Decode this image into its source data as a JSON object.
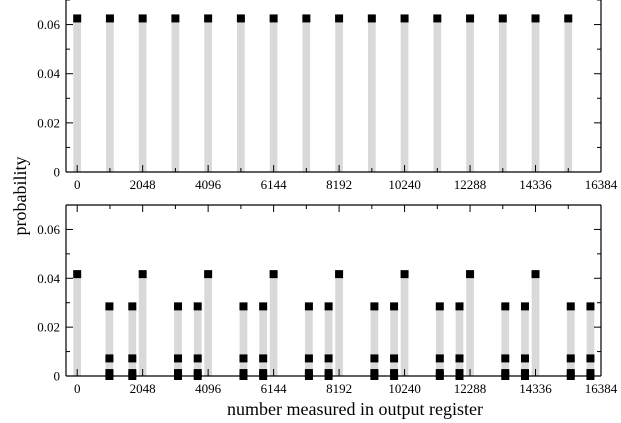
{
  "chart_data": [
    {
      "type": "bar",
      "panel": "top",
      "xlim": [
        -350,
        16384
      ],
      "ylim": [
        0,
        0.07
      ],
      "x_ticks": [
        0,
        2048,
        4096,
        6144,
        8192,
        10240,
        12288,
        14336,
        16384
      ],
      "y_ticks": [
        0,
        0.02,
        0.04,
        0.06
      ],
      "y_tick_labels": [
        "0",
        "0.02",
        "0.04",
        "0.06"
      ],
      "bar_width": 240,
      "series": [
        {
          "values": [
            {
              "x": 0,
              "y": 0.0625
            },
            {
              "x": 1024,
              "y": 0.0625
            },
            {
              "x": 2048,
              "y": 0.0625
            },
            {
              "x": 3072,
              "y": 0.0625
            },
            {
              "x": 4096,
              "y": 0.0625
            },
            {
              "x": 5120,
              "y": 0.0625
            },
            {
              "x": 6144,
              "y": 0.0625
            },
            {
              "x": 7168,
              "y": 0.0625
            },
            {
              "x": 8192,
              "y": 0.0625
            },
            {
              "x": 9216,
              "y": 0.0625
            },
            {
              "x": 10240,
              "y": 0.0625
            },
            {
              "x": 11264,
              "y": 0.0625
            },
            {
              "x": 12288,
              "y": 0.0625
            },
            {
              "x": 13312,
              "y": 0.0625
            },
            {
              "x": 14336,
              "y": 0.0625
            },
            {
              "x": 15360,
              "y": 0.0625
            }
          ]
        }
      ],
      "colors": {
        "bar": "#d9d9d9",
        "marker": "#000000"
      }
    },
    {
      "type": "bar",
      "panel": "bottom",
      "xlim": [
        -350,
        16384
      ],
      "ylim": [
        0,
        0.07
      ],
      "x_ticks": [
        0,
        2048,
        4096,
        6144,
        8192,
        10240,
        12288,
        14336,
        16384
      ],
      "y_ticks": [
        0,
        0.02,
        0.04,
        0.06
      ],
      "y_tick_labels": [
        "0",
        "0.02",
        "0.04",
        "0.06"
      ],
      "bar_width": 240,
      "series": [
        {
          "values": [
            {
              "x": 0,
              "y": 0.0417
            },
            {
              "x": 1008,
              "y": 0.0285
            },
            {
              "x": 1724,
              "y": 0.0285
            },
            {
              "x": 2048,
              "y": 0.0417
            },
            {
              "x": 3154,
              "y": 0.0285
            },
            {
              "x": 3770,
              "y": 0.0285
            },
            {
              "x": 4096,
              "y": 0.0417
            },
            {
              "x": 5201,
              "y": 0.0285
            },
            {
              "x": 5817,
              "y": 0.0285
            },
            {
              "x": 6144,
              "y": 0.0417
            },
            {
              "x": 7248,
              "y": 0.0285
            },
            {
              "x": 7864,
              "y": 0.0285
            },
            {
              "x": 8192,
              "y": 0.0417
            },
            {
              "x": 9296,
              "y": 0.0285
            },
            {
              "x": 9912,
              "y": 0.0285
            },
            {
              "x": 10240,
              "y": 0.0417
            },
            {
              "x": 11342,
              "y": 0.0285
            },
            {
              "x": 11958,
              "y": 0.0285
            },
            {
              "x": 12288,
              "y": 0.0417
            },
            {
              "x": 13390,
              "y": 0.0285
            },
            {
              "x": 14006,
              "y": 0.0285
            },
            {
              "x": 14336,
              "y": 0.0417
            },
            {
              "x": 15438,
              "y": 0.0285
            },
            {
              "x": 16054,
              "y": 0.0285
            }
          ]
        },
        {
          "values": [
            {
              "x": 1008,
              "y": 0.0072
            },
            {
              "x": 1724,
              "y": 0.0072
            },
            {
              "x": 3154,
              "y": 0.0072
            },
            {
              "x": 3770,
              "y": 0.0072
            },
            {
              "x": 5201,
              "y": 0.0072
            },
            {
              "x": 5817,
              "y": 0.0072
            },
            {
              "x": 7248,
              "y": 0.0072
            },
            {
              "x": 7864,
              "y": 0.0072
            },
            {
              "x": 9296,
              "y": 0.0072
            },
            {
              "x": 9912,
              "y": 0.0072
            },
            {
              "x": 11342,
              "y": 0.0072
            },
            {
              "x": 11958,
              "y": 0.0072
            },
            {
              "x": 13390,
              "y": 0.0072
            },
            {
              "x": 14006,
              "y": 0.0072
            },
            {
              "x": 15438,
              "y": 0.0072
            },
            {
              "x": 16054,
              "y": 0.0072
            }
          ]
        },
        {
          "values": [
            {
              "x": 1008,
              "y": 0.0012
            },
            {
              "x": 1724,
              "y": 0.0012
            },
            {
              "x": 3154,
              "y": 0.0012
            },
            {
              "x": 3770,
              "y": 0.0012
            },
            {
              "x": 5201,
              "y": 0.0012
            },
            {
              "x": 5817,
              "y": 0.0012
            },
            {
              "x": 7248,
              "y": 0.0012
            },
            {
              "x": 7864,
              "y": 0.0012
            },
            {
              "x": 9296,
              "y": 0.0012
            },
            {
              "x": 9912,
              "y": 0.0012
            },
            {
              "x": 11342,
              "y": 0.0012
            },
            {
              "x": 11958,
              "y": 0.0012
            },
            {
              "x": 13390,
              "y": 0.0012
            },
            {
              "x": 14006,
              "y": 0.0012
            },
            {
              "x": 15438,
              "y": 0.0012
            },
            {
              "x": 16054,
              "y": 0.0012
            }
          ]
        },
        {
          "values": [
            {
              "x": 1008,
              "y": 0.0
            },
            {
              "x": 1724,
              "y": 0.0
            },
            {
              "x": 3154,
              "y": 0.0
            },
            {
              "x": 3770,
              "y": 0.0
            },
            {
              "x": 5201,
              "y": 0.0
            },
            {
              "x": 5817,
              "y": 0.0
            },
            {
              "x": 7248,
              "y": 0.0
            },
            {
              "x": 7864,
              "y": 0.0
            },
            {
              "x": 9296,
              "y": 0.0
            },
            {
              "x": 9912,
              "y": 0.0
            },
            {
              "x": 11342,
              "y": 0.0
            },
            {
              "x": 11958,
              "y": 0.0
            },
            {
              "x": 13390,
              "y": 0.0
            },
            {
              "x": 14006,
              "y": 0.0
            },
            {
              "x": 15438,
              "y": 0.0
            },
            {
              "x": 16054,
              "y": 0.0
            }
          ]
        }
      ],
      "colors": {
        "bar": "#d9d9d9",
        "marker": "#000000"
      }
    }
  ],
  "ylabel": "probability",
  "xlabel": "number measured in output register"
}
